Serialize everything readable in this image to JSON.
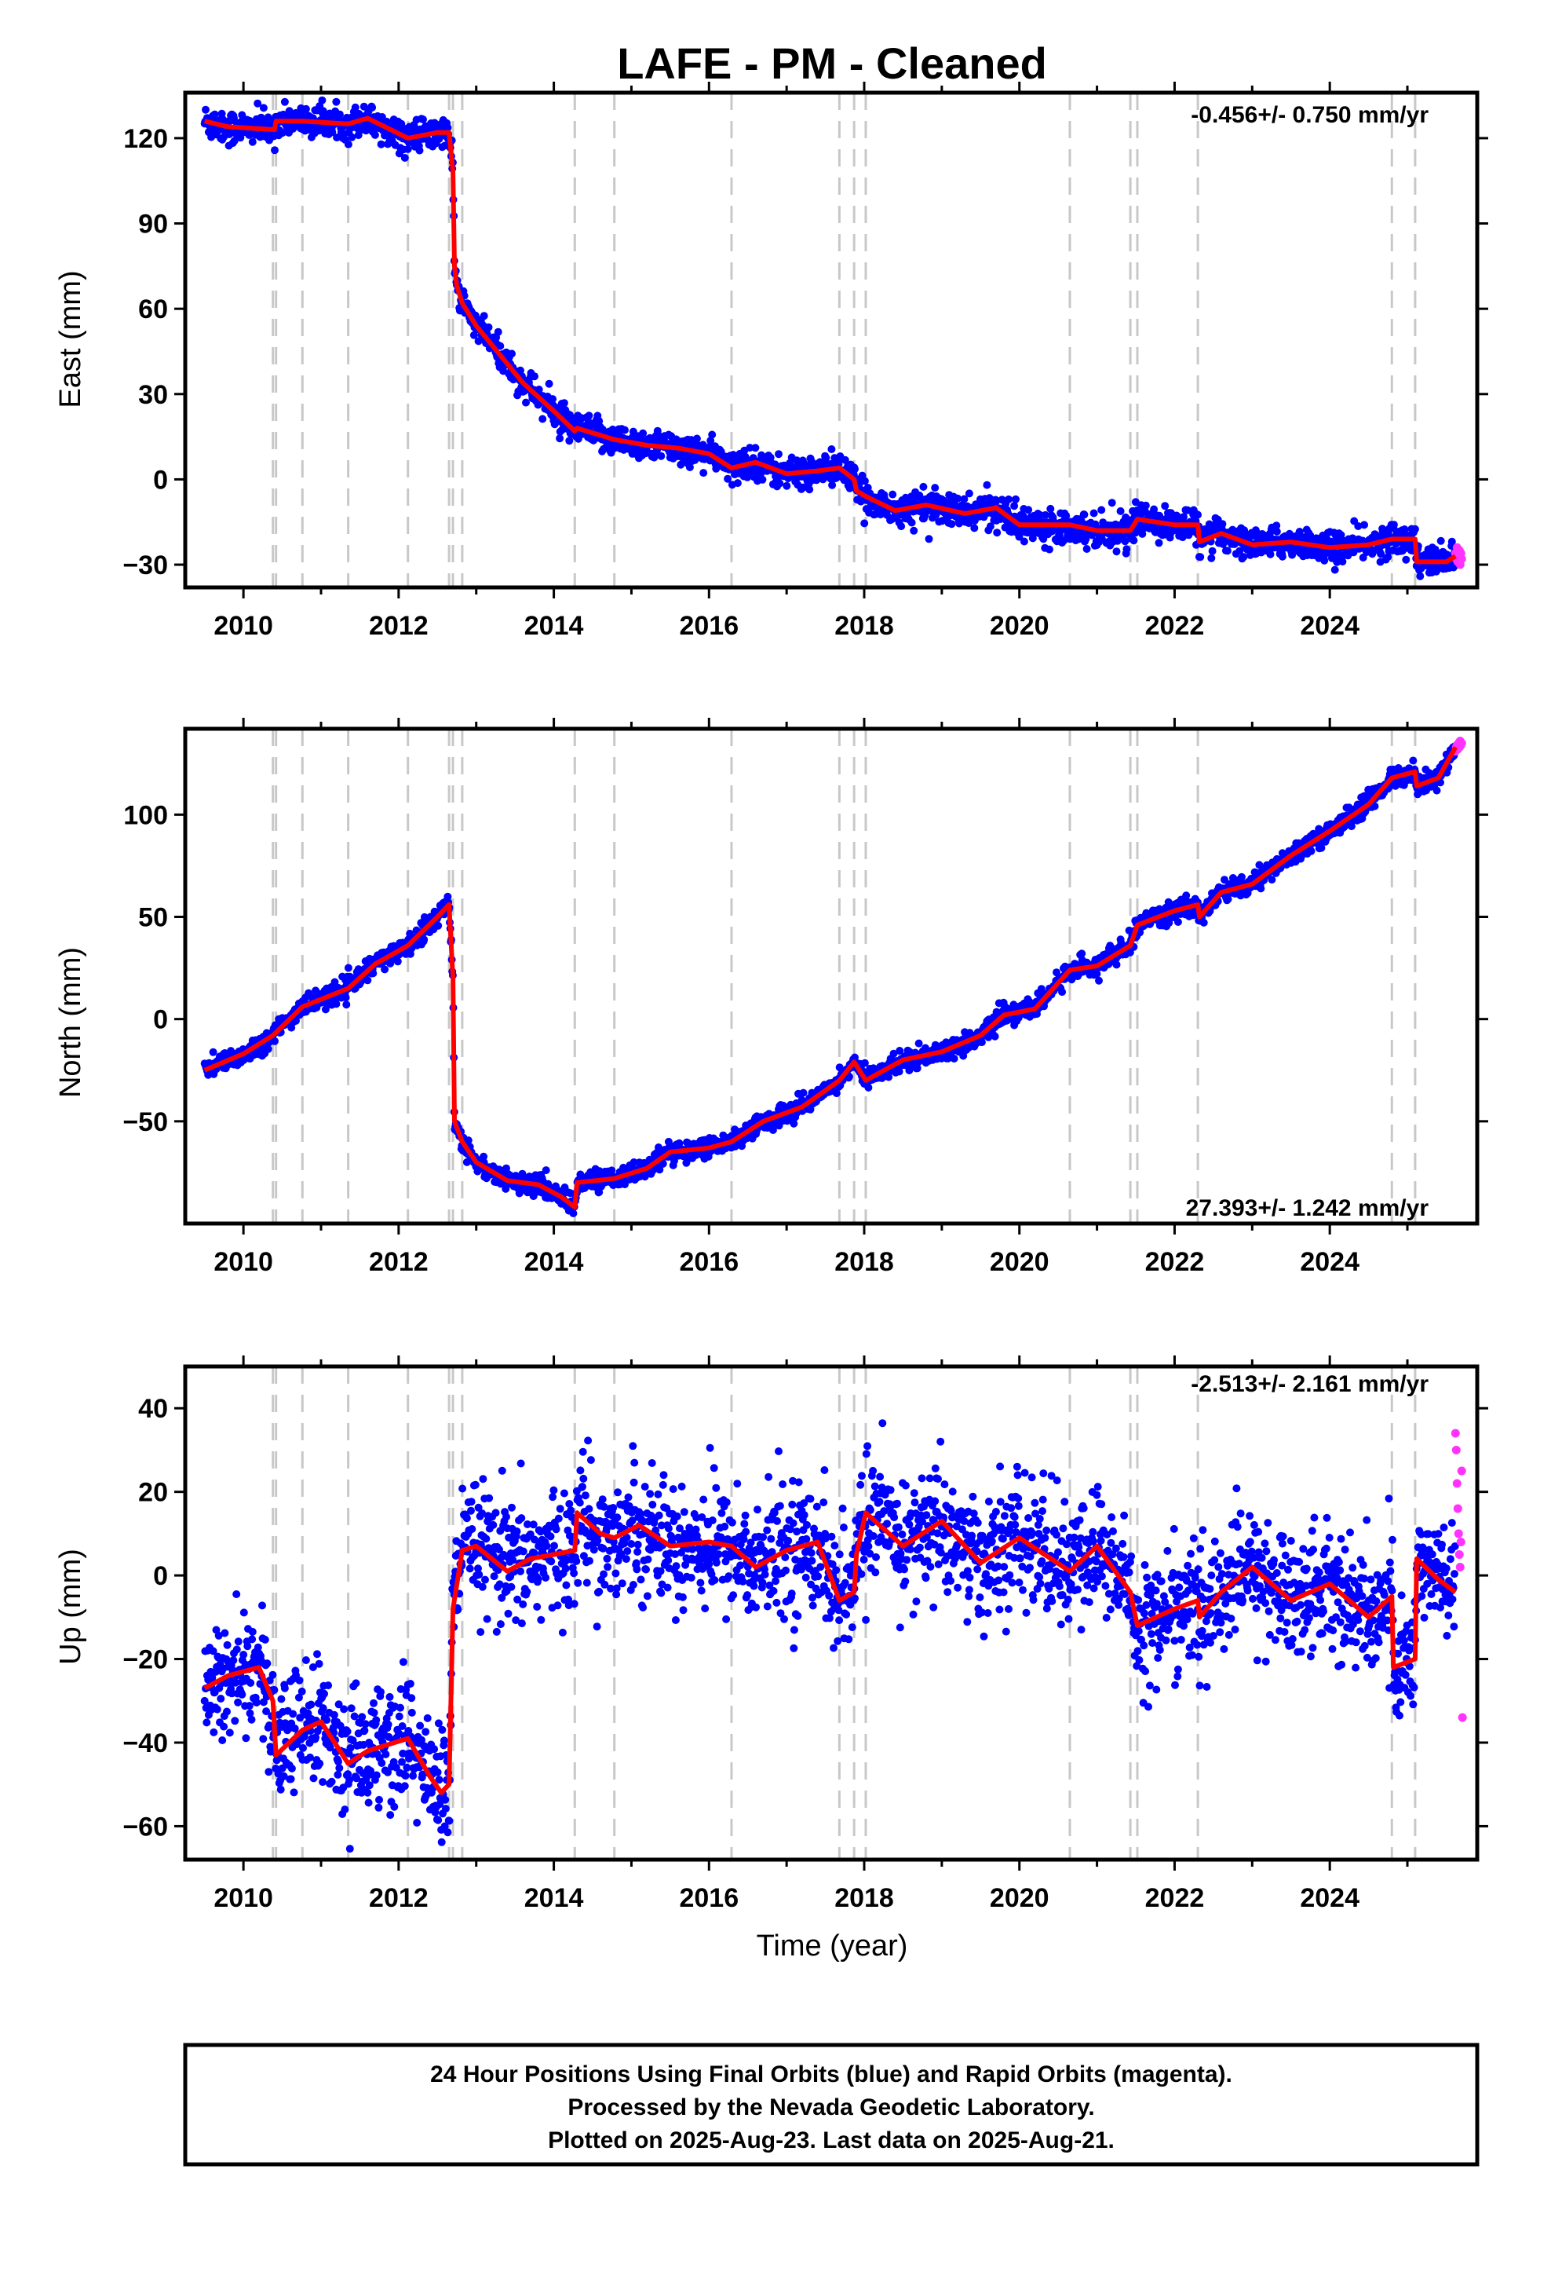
{
  "title": "LAFE  - PM - Cleaned",
  "colors": {
    "final_orbits": "#0000ff",
    "rapid_orbits": "#ff33ff",
    "model": "#ff0000",
    "event_lines": "#c8c8c8"
  },
  "chart_data": [
    {
      "type": "scatter",
      "component": "East",
      "ylabel": "East (mm)",
      "xlabel": "",
      "rate_label": "-0.456+/- 0.750 mm/yr",
      "rate_position": "top-right",
      "xlim": [
        2009.25,
        2025.9
      ],
      "ylim": [
        -38,
        136
      ],
      "xticks": [
        2010,
        2012,
        2014,
        2016,
        2018,
        2020,
        2022,
        2024
      ],
      "yticks": [
        -30,
        0,
        30,
        60,
        90,
        120
      ],
      "noise_mm": 2.5,
      "event_lines": [
        2010.38,
        2010.42,
        2010.76,
        2011.35,
        2012.12,
        2012.65,
        2012.7,
        2012.82,
        2014.27,
        2014.78,
        2016.29,
        2017.68,
        2017.87,
        2018.02,
        2020.65,
        2021.43,
        2021.52,
        2022.3,
        2024.8,
        2025.1
      ],
      "model": {
        "x": [
          2009.5,
          2009.8,
          2010.4,
          2010.42,
          2010.76,
          2011.35,
          2011.6,
          2012.12,
          2012.5,
          2012.65,
          2012.7,
          2012.72,
          2012.75,
          2012.82,
          2013.0,
          2013.3,
          2013.6,
          2014.0,
          2014.27,
          2014.3,
          2014.78,
          2015.2,
          2015.6,
          2016.0,
          2016.29,
          2016.6,
          2017.0,
          2017.4,
          2017.68,
          2017.87,
          2017.9,
          2018.02,
          2018.4,
          2018.8,
          2019.3,
          2019.7,
          2020.0,
          2020.65,
          2021.0,
          2021.43,
          2021.52,
          2022.0,
          2022.3,
          2022.32,
          2022.6,
          2023.0,
          2023.5,
          2024.0,
          2024.5,
          2024.8,
          2025.1,
          2025.12,
          2025.5,
          2025.62
        ],
        "y": [
          126,
          124,
          123,
          126,
          126,
          125,
          127,
          120,
          122,
          122,
          108,
          75,
          68,
          62,
          54,
          44,
          34,
          24,
          17,
          18,
          14,
          12,
          11,
          9,
          4,
          6,
          2,
          3,
          4,
          0,
          -4,
          -6,
          -11,
          -9,
          -12,
          -10,
          -16,
          -16,
          -18,
          -18,
          -14,
          -16,
          -16,
          -22,
          -19,
          -23,
          -22,
          -24,
          -23,
          -21,
          -21,
          -29,
          -29,
          -27
        ]
      },
      "rapid_orbits": {
        "x": [
          2025.62,
          2025.63,
          2025.64,
          2025.65,
          2025.66,
          2025.67,
          2025.68,
          2025.69,
          2025.7
        ],
        "y": [
          -26,
          -28,
          -24,
          -29,
          -27,
          -25,
          -30,
          -26,
          -28
        ]
      }
    },
    {
      "type": "scatter",
      "component": "North",
      "ylabel": "North (mm)",
      "xlabel": "",
      "rate_label": "27.393+/- 1.242 mm/yr",
      "rate_position": "bottom-right",
      "xlim": [
        2009.25,
        2025.9
      ],
      "ylim": [
        -100,
        142
      ],
      "xticks": [
        2010,
        2012,
        2014,
        2016,
        2018,
        2020,
        2022,
        2024
      ],
      "yticks": [
        -50,
        0,
        50,
        100
      ],
      "noise_mm": 2.2,
      "event_lines": [
        2010.38,
        2010.42,
        2010.76,
        2011.35,
        2012.12,
        2012.65,
        2012.7,
        2012.82,
        2014.27,
        2014.78,
        2016.29,
        2017.68,
        2017.87,
        2018.02,
        2020.65,
        2021.43,
        2021.52,
        2022.3,
        2024.8,
        2025.1
      ],
      "model": {
        "x": [
          2009.5,
          2010.0,
          2010.38,
          2010.76,
          2011.35,
          2011.7,
          2012.12,
          2012.5,
          2012.65,
          2012.7,
          2012.72,
          2012.82,
          2013.0,
          2013.4,
          2013.8,
          2014.1,
          2014.27,
          2014.3,
          2014.78,
          2015.2,
          2015.5,
          2016.0,
          2016.29,
          2016.7,
          2017.2,
          2017.68,
          2017.87,
          2018.02,
          2018.5,
          2019.0,
          2019.5,
          2019.8,
          2020.2,
          2020.65,
          2021.0,
          2021.43,
          2021.52,
          2022.0,
          2022.3,
          2022.32,
          2022.6,
          2023.0,
          2023.5,
          2024.0,
          2024.5,
          2024.8,
          2025.1,
          2025.12,
          2025.4,
          2025.62
        ],
        "y": [
          -25,
          -17,
          -8,
          6,
          15,
          27,
          36,
          50,
          56,
          20,
          -50,
          -60,
          -70,
          -79,
          -81,
          -87,
          -92,
          -80,
          -78,
          -73,
          -65,
          -63,
          -60,
          -50,
          -43,
          -30,
          -21,
          -30,
          -20,
          -16,
          -8,
          2,
          5,
          24,
          26,
          36,
          46,
          53,
          56,
          50,
          62,
          66,
          80,
          92,
          105,
          118,
          121,
          114,
          118,
          133
        ]
      },
      "rapid_orbits": {
        "x": [
          2025.62,
          2025.63,
          2025.64,
          2025.65,
          2025.66,
          2025.67,
          2025.68,
          2025.69,
          2025.7
        ],
        "y": [
          131,
          133,
          134,
          132,
          135,
          133,
          136,
          134,
          135
        ]
      }
    },
    {
      "type": "scatter",
      "component": "Up",
      "ylabel": "Up (mm)",
      "xlabel": "Time (year)",
      "rate_label": "-2.513+/- 2.161 mm/yr",
      "rate_position": "top-right",
      "xlim": [
        2009.25,
        2025.9
      ],
      "ylim": [
        -68,
        50
      ],
      "xticks": [
        2010,
        2012,
        2014,
        2016,
        2018,
        2020,
        2022,
        2024
      ],
      "yticks": [
        -60,
        -40,
        -20,
        0,
        20,
        40
      ],
      "noise_mm": 7,
      "event_lines": [
        2010.38,
        2010.42,
        2010.76,
        2011.35,
        2012.12,
        2012.65,
        2012.7,
        2012.82,
        2014.27,
        2014.78,
        2016.29,
        2017.68,
        2017.87,
        2018.02,
        2020.65,
        2021.43,
        2021.52,
        2022.3,
        2024.8,
        2025.1
      ],
      "model": {
        "x": [
          2009.5,
          2009.8,
          2010.2,
          2010.38,
          2010.42,
          2010.76,
          2011.0,
          2011.35,
          2011.6,
          2012.12,
          2012.4,
          2012.55,
          2012.65,
          2012.7,
          2012.82,
          2013.0,
          2013.4,
          2013.7,
          2014.0,
          2014.27,
          2014.3,
          2014.6,
          2014.78,
          2015.1,
          2015.5,
          2016.0,
          2016.29,
          2016.6,
          2017.0,
          2017.4,
          2017.68,
          2017.87,
          2017.9,
          2018.02,
          2018.5,
          2019.0,
          2019.5,
          2020.0,
          2020.65,
          2021.0,
          2021.43,
          2021.52,
          2022.0,
          2022.3,
          2022.32,
          2022.6,
          2023.0,
          2023.5,
          2024.0,
          2024.5,
          2024.8,
          2024.82,
          2025.1,
          2025.12,
          2025.4,
          2025.62
        ],
        "y": [
          -27,
          -24,
          -22,
          -30,
          -43,
          -37,
          -35,
          -45,
          -42,
          -39,
          -48,
          -52,
          -50,
          -8,
          6,
          7,
          1,
          4,
          5,
          6,
          15,
          10,
          9,
          12,
          7,
          8,
          7,
          2,
          6,
          8,
          -6,
          -4,
          5,
          15,
          7,
          13,
          3,
          9,
          1,
          7,
          -4,
          -12,
          -8,
          -6,
          -10,
          -4,
          2,
          -6,
          -2,
          -10,
          -5,
          -22,
          -20,
          4,
          -1,
          -4
        ]
      },
      "rapid_orbits": {
        "x": [
          2025.62,
          2025.63,
          2025.64,
          2025.65,
          2025.66,
          2025.67,
          2025.68,
          2025.69,
          2025.7,
          2025.71
        ],
        "y": [
          34,
          30,
          22,
          16,
          10,
          5,
          2,
          8,
          25,
          -34
        ]
      }
    }
  ],
  "footer": {
    "lines": [
      "24 Hour Positions Using Final Orbits (blue) and Rapid Orbits (magenta).",
      "Processed by the Nevada Geodetic Laboratory.",
      "Plotted on 2025-Aug-23. Last data on 2025-Aug-21."
    ]
  }
}
